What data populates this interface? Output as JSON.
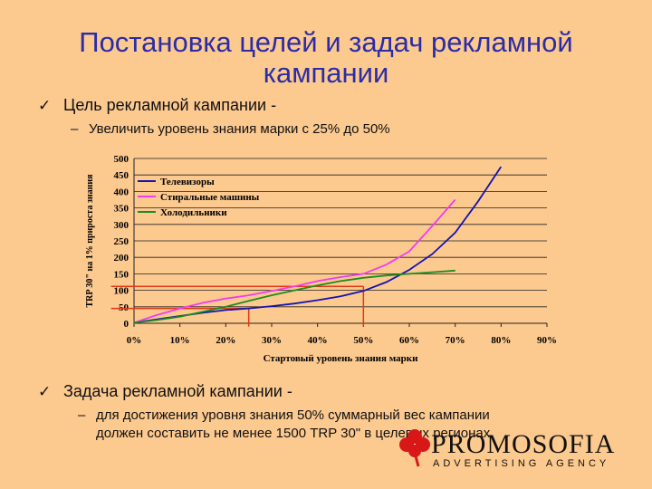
{
  "slide": {
    "title": "Постановка целей и задач рекламной кампании",
    "goal_heading": "Цель рекламной кампании -",
    "goal_item": "Увеличить уровень знания марки с 25% до 50%",
    "task_heading": "Задача рекламной кампании -",
    "task_item_line1": "для достижения уровня знания 50% суммарный вес кампании",
    "task_item_line2": "должен составить не менее 1500 TRP 30\" в целевых регионах",
    "bullet_glyph": "✓",
    "dash_glyph": "–"
  },
  "logo": {
    "name": "PROMOSOFIA",
    "tagline": "ADVERTISING AGENCY",
    "mark_icon": "clover-icon",
    "mark_color": "#D81818"
  },
  "chart_data": {
    "type": "line",
    "xlabel": "Стартовый уровень знания марки",
    "ylabel": "TRP 30\" на 1% прироста знания",
    "xlim": [
      0,
      90
    ],
    "ylim": [
      0,
      500
    ],
    "x_ticks": [
      "0%",
      "10%",
      "20%",
      "30%",
      "40%",
      "50%",
      "60%",
      "70%",
      "80%",
      "90%"
    ],
    "y_ticks": [
      0,
      50,
      100,
      150,
      200,
      250,
      300,
      350,
      400,
      450,
      500
    ],
    "grid": "horizontal",
    "legend_position": "top-left",
    "series": [
      {
        "name": "Телевизоры",
        "color": "#1414B0",
        "points": [
          [
            0,
            2
          ],
          [
            5,
            12
          ],
          [
            10,
            22
          ],
          [
            15,
            32
          ],
          [
            20,
            40
          ],
          [
            25,
            45
          ],
          [
            30,
            52
          ],
          [
            35,
            60
          ],
          [
            40,
            70
          ],
          [
            45,
            82
          ],
          [
            50,
            98
          ],
          [
            55,
            125
          ],
          [
            60,
            162
          ],
          [
            65,
            210
          ],
          [
            70,
            275
          ],
          [
            75,
            370
          ],
          [
            80,
            475
          ]
        ]
      },
      {
        "name": "Стиральные машины",
        "color": "#F23CF0",
        "points": [
          [
            0,
            2
          ],
          [
            5,
            25
          ],
          [
            10,
            45
          ],
          [
            15,
            62
          ],
          [
            20,
            75
          ],
          [
            25,
            85
          ],
          [
            30,
            98
          ],
          [
            35,
            112
          ],
          [
            40,
            128
          ],
          [
            45,
            140
          ],
          [
            50,
            150
          ],
          [
            55,
            178
          ],
          [
            60,
            218
          ],
          [
            65,
            295
          ],
          [
            70,
            375
          ]
        ]
      },
      {
        "name": "Холодильники",
        "color": "#1E8C1E",
        "points": [
          [
            0,
            2
          ],
          [
            5,
            10
          ],
          [
            10,
            20
          ],
          [
            15,
            35
          ],
          [
            20,
            50
          ],
          [
            25,
            68
          ],
          [
            30,
            85
          ],
          [
            35,
            100
          ],
          [
            40,
            115
          ],
          [
            45,
            128
          ],
          [
            50,
            138
          ],
          [
            55,
            145
          ],
          [
            60,
            150
          ],
          [
            65,
            155
          ],
          [
            70,
            160
          ]
        ]
      }
    ],
    "reference_lines": [
      {
        "color": "#E03A14",
        "type": "h",
        "x_from": -5,
        "x_to": 25,
        "y": 45
      },
      {
        "color": "#E03A14",
        "type": "v",
        "x": 25,
        "y_from": -10,
        "y_to": 45
      },
      {
        "color": "#E03A14",
        "type": "h",
        "x_from": -5,
        "x_to": 50,
        "y": 112
      },
      {
        "color": "#E03A14",
        "type": "v",
        "x": 50,
        "y_from": -10,
        "y_to": 112
      }
    ]
  }
}
